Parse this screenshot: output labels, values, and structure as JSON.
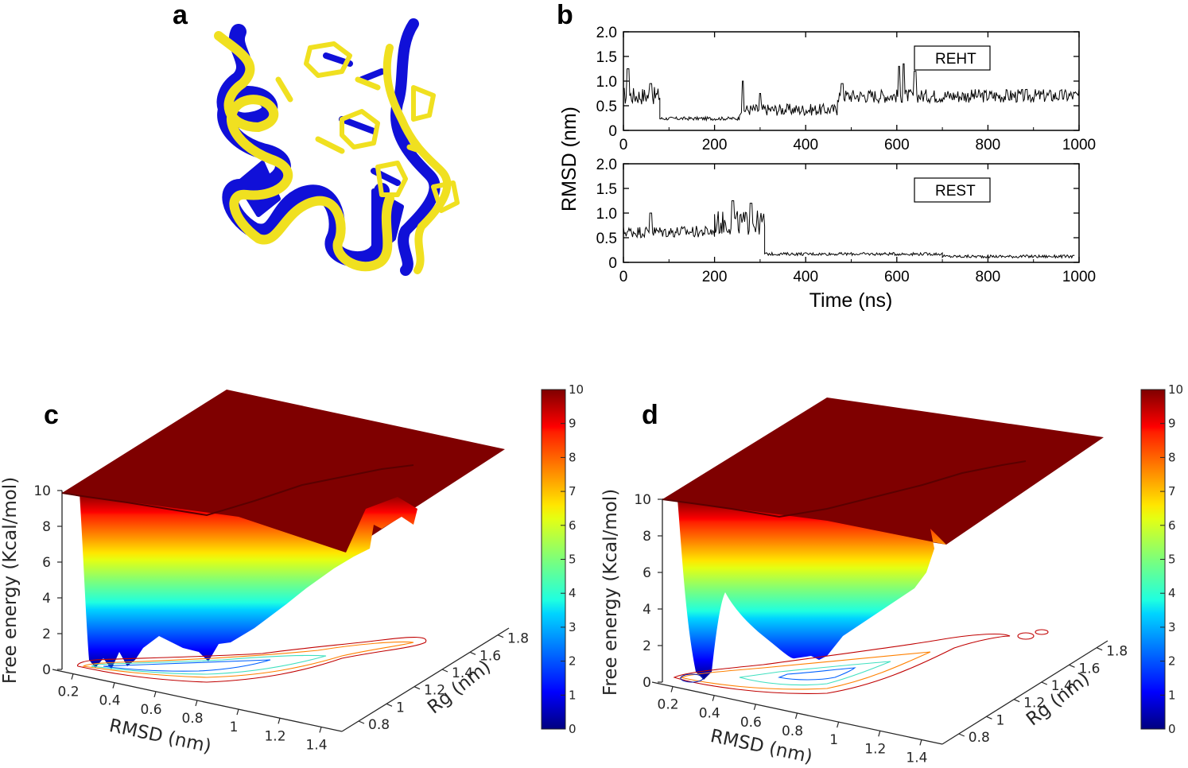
{
  "panels": {
    "a": {
      "label": "a"
    },
    "b": {
      "label": "b"
    },
    "c": {
      "label": "c"
    },
    "d": {
      "label": "d"
    }
  },
  "colors": {
    "structure_ref": "#1010d8",
    "structure_pred": "#f0e020",
    "surface_top": "#7f0000"
  },
  "chart_data": [
    {
      "id": "b-top",
      "type": "line",
      "legend": "REHT",
      "xlabel": "",
      "ylabel": "RMSD (nm)",
      "xlim": [
        0,
        1000
      ],
      "ylim": [
        0,
        2.0
      ],
      "xticks": [
        "0",
        "200",
        "400",
        "600",
        "800",
        "1000"
      ],
      "yticks": [
        "0",
        "0.5",
        "1.0",
        "1.5",
        "2.0"
      ],
      "series": [
        {
          "name": "REHT",
          "segments": [
            {
              "x": [
                0,
                80
              ],
              "mean": 0.7,
              "noise": 0.18,
              "spikes": [
                [
                  10,
                  1.25
                ],
                [
                  60,
                  0.95
                ]
              ]
            },
            {
              "x": [
                80,
                255
              ],
              "mean": 0.24,
              "noise": 0.035
            },
            {
              "x": [
                255,
                470
              ],
              "mean": 0.42,
              "noise": 0.12,
              "spikes": [
                [
                  262,
                  1.0
                ],
                [
                  300,
                  0.75
                ]
              ]
            },
            {
              "x": [
                470,
                1000
              ],
              "mean": 0.7,
              "noise": 0.14,
              "spikes": [
                [
                  605,
                  1.3
                ],
                [
                  615,
                  1.35
                ],
                [
                  640,
                  1.2
                ],
                [
                  480,
                  0.95
                ]
              ]
            }
          ]
        }
      ]
    },
    {
      "id": "b-bottom",
      "type": "line",
      "legend": "REST",
      "xlabel": "Time (ns)",
      "ylabel": "",
      "xlim": [
        0,
        1000
      ],
      "ylim": [
        0,
        2.0
      ],
      "xticks": [
        "0",
        "200",
        "400",
        "600",
        "800",
        "1000"
      ],
      "yticks": [
        "0",
        "0.5",
        "1.0",
        "1.5",
        "2.0"
      ],
      "series": [
        {
          "name": "REST",
          "segments": [
            {
              "x": [
                0,
                200
              ],
              "mean": 0.62,
              "noise": 0.12,
              "spikes": [
                [
                  60,
                  1.0
                ]
              ]
            },
            {
              "x": [
                200,
                310
              ],
              "mean": 0.8,
              "noise": 0.25,
              "spikes": [
                [
                  240,
                  1.25
                ],
                [
                  280,
                  1.2
                ]
              ]
            },
            {
              "x": [
                310,
                700
              ],
              "mean": 0.17,
              "noise": 0.03
            },
            {
              "x": [
                700,
                990
              ],
              "mean": 0.12,
              "noise": 0.03
            }
          ]
        }
      ]
    },
    {
      "id": "c",
      "type": "surface3d",
      "zlabel": "Free energy (Kcal/mol)",
      "xlabel": "RMSD (nm)",
      "ylabel": "Rg (nm)",
      "zticks": [
        "0",
        "2",
        "4",
        "6",
        "8",
        "10"
      ],
      "xticks": [
        "0.2",
        "0.4",
        "0.6",
        "0.8",
        "1",
        "1.2",
        "1.4"
      ],
      "yticks": [
        "0.8",
        "1",
        "1.2",
        "1.4",
        "1.6",
        "1.8"
      ],
      "colorbar": {
        "min": 0,
        "max": 10,
        "ticks": [
          "0",
          "1",
          "2",
          "3",
          "4",
          "5",
          "6",
          "7",
          "8",
          "9",
          "10"
        ]
      },
      "minima_kcal": [
        0.2,
        0.1,
        0.4
      ]
    },
    {
      "id": "d",
      "type": "surface3d",
      "zlabel": "Free energy (Kcal/mol)",
      "xlabel": "RMSD (nm)",
      "ylabel": "Rg (nm)",
      "zticks": [
        "0",
        "2",
        "4",
        "6",
        "8",
        "10"
      ],
      "xticks": [
        "0.2",
        "0.4",
        "0.6",
        "0.8",
        "1",
        "1.2",
        "1.4"
      ],
      "yticks": [
        "0.8",
        "1",
        "1.2",
        "1.4",
        "1.6",
        "1.8"
      ],
      "colorbar": {
        "min": 0,
        "max": 10,
        "ticks": [
          "0",
          "1",
          "2",
          "3",
          "4",
          "5",
          "6",
          "7",
          "8",
          "9",
          "10"
        ]
      },
      "minima_kcal": [
        0.0,
        1.0,
        1.1
      ]
    }
  ]
}
